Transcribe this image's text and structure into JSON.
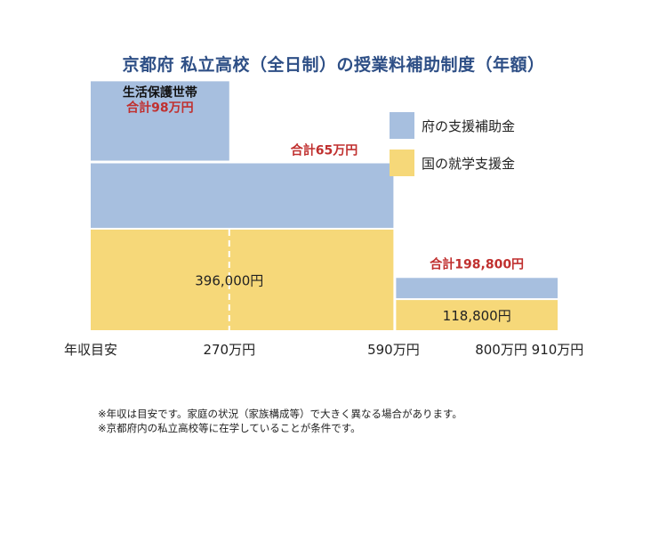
{
  "chart_data": {
    "type": "bar",
    "title": "京都府 私立高校（全日制）の授業料補助制度（年額）",
    "xlabel": "年収目安",
    "ylabel": "",
    "x_ticks": [
      "270万円",
      "590万円",
      "800万円",
      "910万円"
    ],
    "x_domain": [
      0,
      910
    ],
    "segments": [
      {
        "range": [
          0,
          590
        ],
        "national": 396000,
        "prefecture": 254000,
        "total": 650000,
        "total_label": "合計65万円",
        "national_label": "396,000円"
      },
      {
        "range": [
          590,
          910
        ],
        "national": 118800,
        "prefecture": 80000,
        "total": 198800,
        "total_label": "合計198,800円",
        "national_label": "118,800円"
      }
    ],
    "welfare_segment": {
      "range": [
        0,
        270
      ],
      "name": "生活保護世帯",
      "total": 980000,
      "total_label": "合計98万円",
      "divider_at": 270
    },
    "series": [
      {
        "name": "府の支援補助金",
        "color": "#a7bfdf"
      },
      {
        "name": "国の就学支援金",
        "color": "#f6d879"
      }
    ],
    "legend_position": "top-right",
    "grid": false
  },
  "colors": {
    "prefecture": "#a7bfdf",
    "national": "#f6d879",
    "highlight_text": "#c0302f",
    "title": "#2e4f86"
  },
  "notes": [
    "※年収は目安です。家庭の状況（家族構成等）で大きく異なる場合があります。",
    "※京都府内の私立高校等に在学していることが条件です。"
  ]
}
